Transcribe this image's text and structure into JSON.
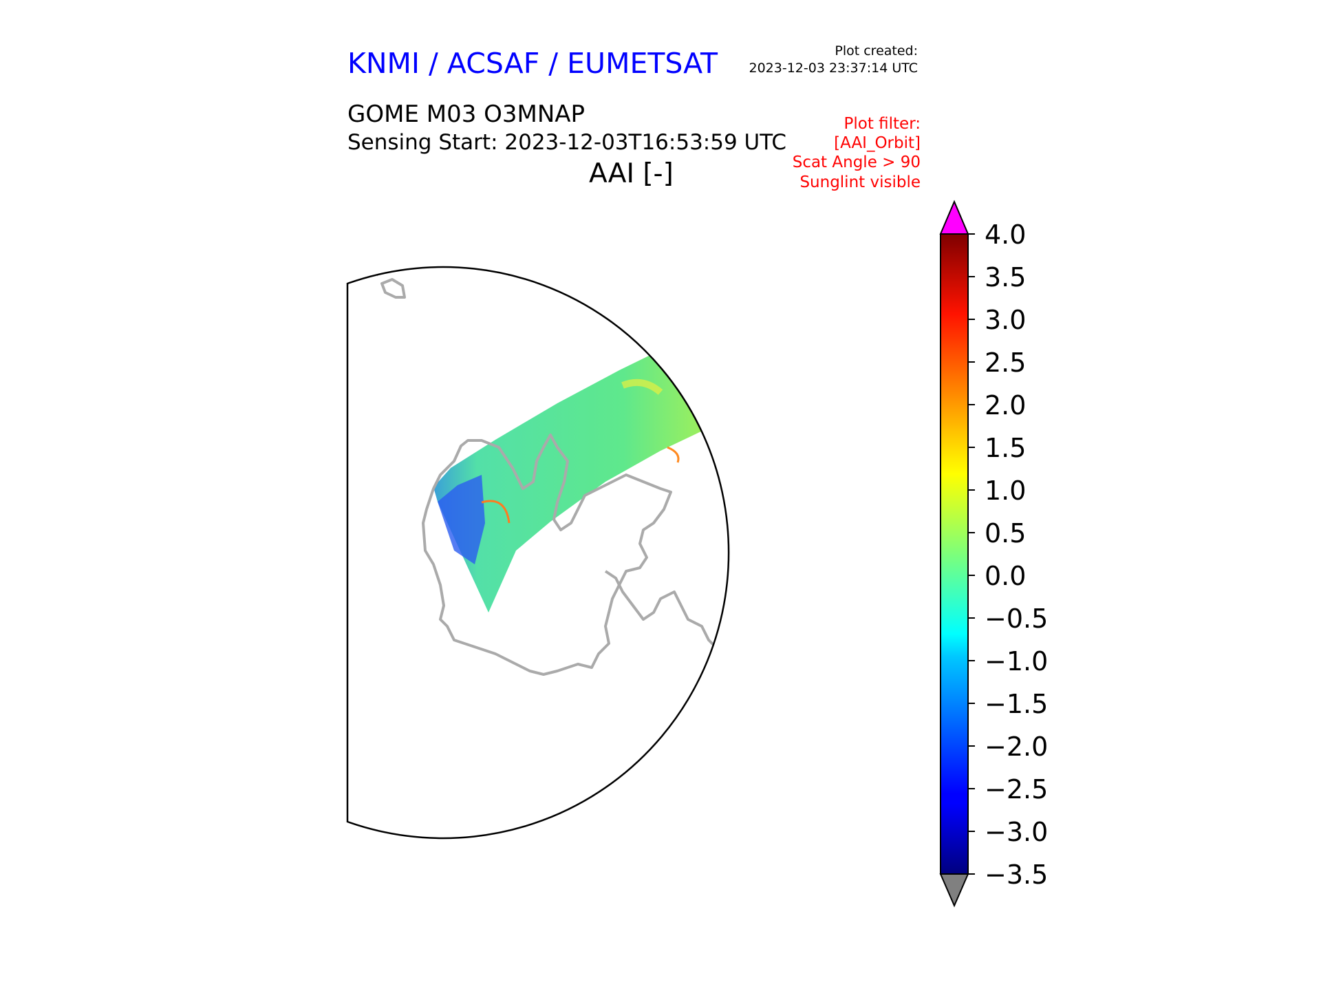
{
  "header": {
    "organization": "KNMI / ACSAF / EUMETSAT",
    "plot_created_label": "Plot created:",
    "plot_created_time": "2023-12-03 23:37:14 UTC",
    "product": "GOME M03 O3MNAP",
    "sensing_start": "Sensing Start: 2023-12-03T16:53:59 UTC",
    "variable": "AAI [-]"
  },
  "plot_filter": [
    "Plot filter:",
    "[AAI_Orbit]",
    "Scat Angle > 90",
    "Sunglint visible"
  ],
  "colorbar": {
    "min": -3.5,
    "max": 4.0,
    "ticks": [
      "4.0",
      "3.5",
      "3.0",
      "2.5",
      "2.0",
      "1.5",
      "1.0",
      "0.5",
      "0.0",
      "−0.5",
      "−1.0",
      "−1.5",
      "−2.0",
      "−2.5",
      "−3.0",
      "−3.5"
    ],
    "over_color": "#ff00ff",
    "under_color": "#808080",
    "colormap": "jet"
  },
  "colors": {
    "coastline": "#aaaaaa",
    "title_blue": "#0000ff",
    "filter_red": "#ff0000"
  }
}
